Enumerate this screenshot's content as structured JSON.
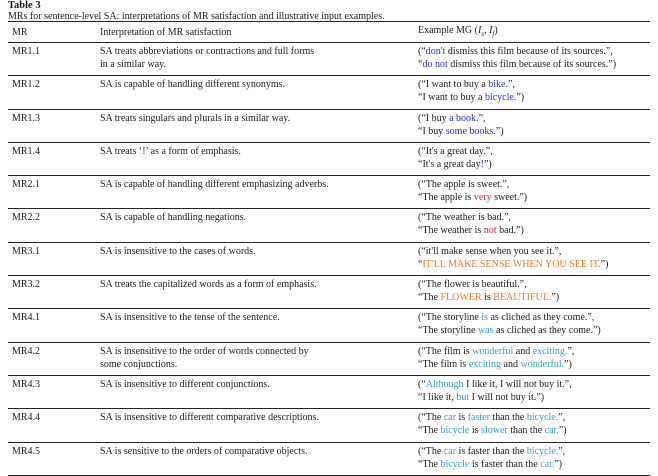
{
  "caption": {
    "label": "Table 3",
    "text": "MRs for sentence-level SA: interpretations of MR satisfaction and illustrative input examples."
  },
  "colors": {
    "blue": "#2b2bdc",
    "red": "#c8245a",
    "orange": "#f07828",
    "lightblue": "#3a9ad0"
  },
  "headers": [
    "MR",
    "Interpretation of MR satisfaction",
    "Example MG (I_s, I_f)"
  ],
  "rows": [
    {
      "mr": "MR1.1",
      "interp": [
        "SA treats abbreviations or contractions and full forms",
        "in a similar way."
      ],
      "ex": [
        [
          [
            "(“",
            ""
          ],
          [
            "don't",
            "blue"
          ],
          [
            " dismiss this film because of its sources.”,",
            ""
          ]
        ],
        [
          [
            "“",
            ""
          ],
          [
            "do not",
            "blue"
          ],
          [
            " dismiss this film because of its sources.”)",
            ""
          ]
        ]
      ]
    },
    {
      "mr": "MR1.2",
      "interp": [
        "SA is capable of handling different synonyms."
      ],
      "ex": [
        [
          [
            "(“I want to buy a ",
            ""
          ],
          [
            "bike.",
            "blue"
          ],
          [
            "”,",
            ""
          ]
        ],
        [
          [
            "“I want to buy a ",
            ""
          ],
          [
            "bicycle.",
            "blue"
          ],
          [
            "”)",
            ""
          ]
        ]
      ]
    },
    {
      "mr": "MR1.3",
      "interp": [
        "SA treats singulars and plurals in a similar way."
      ],
      "ex": [
        [
          [
            "(“I buy ",
            ""
          ],
          [
            "a book.",
            "blue"
          ],
          [
            "”,",
            ""
          ]
        ],
        [
          [
            "“I buy ",
            ""
          ],
          [
            "some books.",
            "blue"
          ],
          [
            "”)",
            ""
          ]
        ]
      ]
    },
    {
      "mr": "MR1.4",
      "interp": [
        "SA treats ‘!’ as a form of emphasis."
      ],
      "ex": [
        [
          [
            "(“It's a great day.”,",
            ""
          ]
        ],
        [
          [
            "“It's a great day",
            ""
          ],
          [
            "!",
            "blue"
          ],
          [
            "”)",
            ""
          ]
        ]
      ]
    },
    {
      "mr": "MR2.1",
      "interp": [
        "SA is capable of handling different emphasizing adverbs."
      ],
      "ex": [
        [
          [
            "(“The apple is sweet.”,",
            ""
          ]
        ],
        [
          [
            "“The apple is ",
            ""
          ],
          [
            "very",
            "red"
          ],
          [
            " sweet.”)",
            ""
          ]
        ]
      ]
    },
    {
      "mr": "MR2.2",
      "interp": [
        "SA is capable of handling negations."
      ],
      "ex": [
        [
          [
            "(“The weather is bad.”,",
            ""
          ]
        ],
        [
          [
            "“The weather is ",
            ""
          ],
          [
            "not",
            "red"
          ],
          [
            " bad.”)",
            ""
          ]
        ]
      ]
    },
    {
      "mr": "MR3.1",
      "interp": [
        "SA is insensitive to the cases of words."
      ],
      "ex": [
        [
          [
            "(“it'll make sense when you see it.”,",
            ""
          ]
        ],
        [
          [
            "“",
            ""
          ],
          [
            "IT'LL MAKE SENSE WHEN YOU SEE IT.",
            "orange"
          ],
          [
            "”)",
            ""
          ]
        ]
      ]
    },
    {
      "mr": "MR3.2",
      "interp": [
        "SA treats the capitalized words as a form of emphasis."
      ],
      "ex": [
        [
          [
            "(“The flower is beautiful.”,",
            ""
          ]
        ],
        [
          [
            "“The ",
            ""
          ],
          [
            "FLOWER",
            "orange"
          ],
          [
            " is ",
            ""
          ],
          [
            "BEAUTIFUL.",
            "orange"
          ],
          [
            "”)",
            ""
          ]
        ]
      ]
    },
    {
      "mr": "MR4.1",
      "interp": [
        "SA is insensitive to the tense of the sentence."
      ],
      "ex": [
        [
          [
            "(“The storyline ",
            ""
          ],
          [
            "is",
            "lightblue"
          ],
          [
            " as cliched as they come.”,",
            ""
          ]
        ],
        [
          [
            "“The storyline ",
            ""
          ],
          [
            "was",
            "lightblue"
          ],
          [
            " as cliched as they come.”)",
            ""
          ]
        ]
      ]
    },
    {
      "mr": "MR4.2",
      "interp": [
        "SA is insensitive to the order of words connected by",
        "some conjunctions."
      ],
      "ex": [
        [
          [
            "(“The film is ",
            ""
          ],
          [
            "wonderful",
            "lightblue"
          ],
          [
            " and ",
            ""
          ],
          [
            "exciting.",
            "lightblue"
          ],
          [
            "”,",
            ""
          ]
        ],
        [
          [
            "“The film is ",
            ""
          ],
          [
            "exciting",
            "lightblue"
          ],
          [
            " and ",
            ""
          ],
          [
            "wonderful.",
            "lightblue"
          ],
          [
            "”)",
            ""
          ]
        ]
      ]
    },
    {
      "mr": "MR4.3",
      "interp": [
        "SA is insensitive to different conjunctions."
      ],
      "ex": [
        [
          [
            "(“",
            ""
          ],
          [
            "Although",
            "lightblue"
          ],
          [
            " I like it, I will not buy it.”,",
            ""
          ]
        ],
        [
          [
            "“I like it, ",
            ""
          ],
          [
            "but",
            "lightblue"
          ],
          [
            " I will not buy it.”)",
            ""
          ]
        ]
      ]
    },
    {
      "mr": "MR4.4",
      "interp": [
        "SA is insensitive to different comparative descriptions."
      ],
      "ex": [
        [
          [
            "(“The ",
            ""
          ],
          [
            "car",
            "lightblue"
          ],
          [
            " is ",
            ""
          ],
          [
            "faster",
            "lightblue"
          ],
          [
            " than the ",
            ""
          ],
          [
            "bicycle.",
            "lightblue"
          ],
          [
            "”,",
            ""
          ]
        ],
        [
          [
            "“The ",
            ""
          ],
          [
            "bicycle",
            "lightblue"
          ],
          [
            " is ",
            ""
          ],
          [
            "slower",
            "lightblue"
          ],
          [
            " than the ",
            ""
          ],
          [
            "car.",
            "lightblue"
          ],
          [
            "”)",
            ""
          ]
        ]
      ]
    },
    {
      "mr": "MR4.5",
      "interp": [
        "SA is sensitive to the orders of comparative objects."
      ],
      "ex": [
        [
          [
            "(“The ",
            ""
          ],
          [
            "car",
            "lightblue"
          ],
          [
            " is faster than the ",
            ""
          ],
          [
            "bicycle.",
            "lightblue"
          ],
          [
            "”,",
            ""
          ]
        ],
        [
          [
            "“The ",
            ""
          ],
          [
            "bicycle",
            "lightblue"
          ],
          [
            " is faster than the ",
            ""
          ],
          [
            "car.",
            "lightblue"
          ],
          [
            "”)",
            ""
          ]
        ]
      ]
    }
  ]
}
